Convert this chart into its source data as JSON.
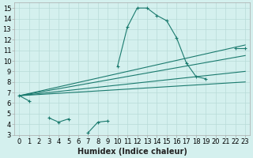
{
  "xlabel": "Humidex (Indice chaleur)",
  "ylabel": "",
  "background_color": "#d4f0ee",
  "grid_color": "#b8dbd8",
  "line_color": "#1a7a6e",
  "xlim": [
    -0.5,
    23.5
  ],
  "ylim": [
    3,
    15.5
  ],
  "xticks": [
    0,
    1,
    2,
    3,
    4,
    5,
    6,
    7,
    8,
    9,
    10,
    11,
    12,
    13,
    14,
    15,
    16,
    17,
    18,
    19,
    20,
    21,
    22,
    23
  ],
  "yticks": [
    3,
    4,
    5,
    6,
    7,
    8,
    9,
    10,
    11,
    12,
    13,
    14,
    15
  ],
  "main_series": {
    "x": [
      0,
      1,
      3,
      4,
      5,
      7,
      8,
      9,
      10,
      11,
      12,
      13,
      14,
      15,
      16,
      17,
      18,
      19,
      22,
      23
    ],
    "y": [
      6.7,
      6.2,
      4.6,
      4.2,
      4.5,
      3.2,
      4.2,
      4.3,
      9.5,
      13.2,
      15.0,
      15.0,
      14.3,
      13.8,
      12.2,
      9.8,
      8.5,
      8.3,
      11.2,
      11.2
    ]
  },
  "straight_lines": [
    {
      "x": [
        0,
        23
      ],
      "y": [
        6.7,
        11.5
      ]
    },
    {
      "x": [
        0,
        23
      ],
      "y": [
        6.7,
        10.5
      ]
    },
    {
      "x": [
        0,
        23
      ],
      "y": [
        6.7,
        9.0
      ]
    },
    {
      "x": [
        0,
        23
      ],
      "y": [
        6.7,
        8.0
      ]
    }
  ],
  "fontsize_ticks": 6,
  "fontsize_label": 7
}
